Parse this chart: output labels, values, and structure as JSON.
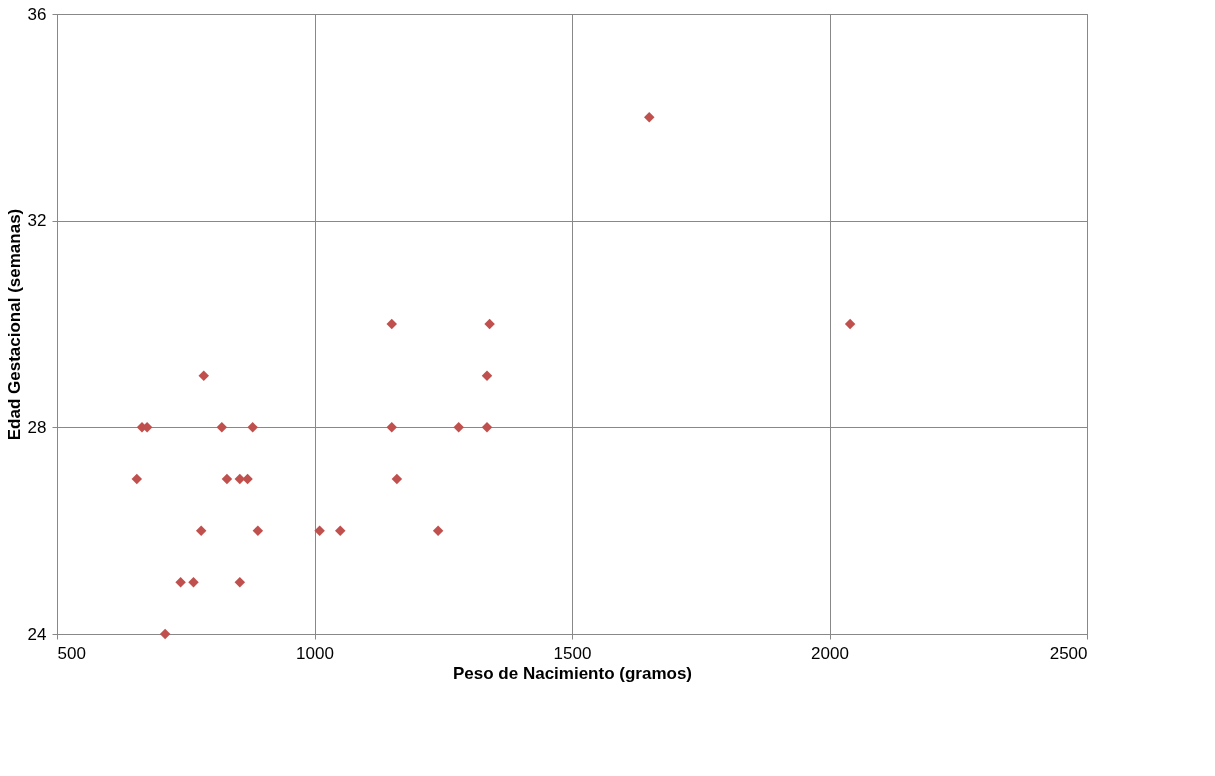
{
  "chart_data": {
    "type": "scatter",
    "xlabel": "Peso de Nacimiento (gramos)",
    "ylabel": "Edad Gestacional (semanas)",
    "x": [
      1650,
      2040,
      1150,
      1340,
      785,
      1335,
      665,
      675,
      820,
      880,
      1150,
      1280,
      1335,
      655,
      830,
      855,
      870,
      1160,
      780,
      890,
      1010,
      1050,
      1240,
      740,
      765,
      855,
      710
    ],
    "series": [
      {
        "color": "#c0504d",
        "values": [
          34,
          30,
          30,
          30,
          29,
          29,
          28,
          28,
          28,
          28,
          28,
          28,
          28,
          27,
          27,
          27,
          27,
          27,
          26,
          26,
          26,
          26,
          26,
          25,
          25,
          25,
          24
        ]
      }
    ],
    "xlim": [
      500,
      2500
    ],
    "xticks": [
      500,
      1000,
      1500,
      2000,
      2500
    ],
    "ylim": [
      24,
      36
    ],
    "yticks": [
      24,
      28,
      32,
      36
    ],
    "grid": true,
    "marker": "diamond"
  }
}
